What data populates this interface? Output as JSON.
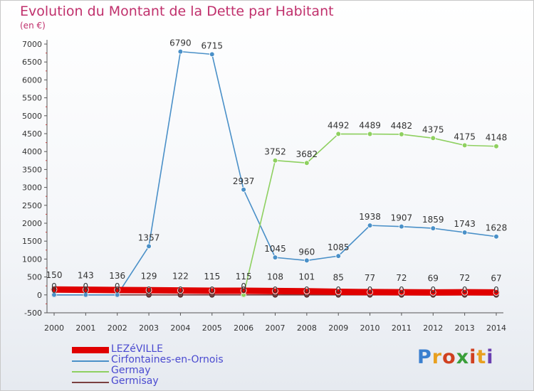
{
  "title": "Evolution du Montant de la Dette par Habitant",
  "subtitle": "(en €)",
  "brand": {
    "text": "Proxiti",
    "colors": [
      "#3a7fcf",
      "#e8a020",
      "#d04020",
      "#3a9f3a",
      "#d04020",
      "#e8a020",
      "#6a3fb0"
    ]
  },
  "chart_data": {
    "type": "line",
    "x": [
      "2000",
      "2001",
      "2002",
      "2003",
      "2004",
      "2005",
      "2006",
      "2007",
      "2008",
      "2009",
      "2010",
      "2011",
      "2012",
      "2013",
      "2014"
    ],
    "ylim": [
      -500,
      7000
    ],
    "yticks": [
      -500,
      0,
      500,
      1000,
      1500,
      2000,
      2500,
      3000,
      3500,
      4000,
      4500,
      5000,
      5500,
      6000,
      6500,
      7000
    ],
    "grid": false,
    "legend_position": "bottom-left",
    "series": [
      {
        "name": "LEZéVILLE",
        "color": "#e00000",
        "values": [
          150,
          143,
          136,
          129,
          122,
          115,
          115,
          108,
          101,
          85,
          77,
          72,
          69,
          72,
          67
        ],
        "labels": [
          "150",
          "143",
          "136",
          "129",
          "122",
          "115",
          "115",
          "108",
          "101",
          "85",
          "77",
          "72",
          "69",
          "72",
          "67"
        ]
      },
      {
        "name": "Cirfontaines-en-Ornois",
        "color": "#4a90c8",
        "values": [
          0,
          0,
          0,
          1357,
          6790,
          6715,
          2937,
          1045,
          960,
          1085,
          1938,
          1907,
          1859,
          1743,
          1628
        ],
        "labels": [
          "0",
          "0",
          "0",
          "1357",
          "6790",
          "6715",
          "2937",
          "1045",
          "960",
          "1085",
          "1938",
          "1907",
          "1859",
          "1743",
          "1628"
        ]
      },
      {
        "name": "Germay",
        "color": "#8ed060",
        "values": [
          null,
          null,
          null,
          null,
          null,
          null,
          0,
          3752,
          3682,
          4492,
          4489,
          4482,
          4375,
          4175,
          4148
        ],
        "labels": [
          "",
          "",
          "",
          "",
          "",
          "",
          "0",
          "3752",
          "3682",
          "4492",
          "4489",
          "4482",
          "4375",
          "4175",
          "4148"
        ]
      },
      {
        "name": "Germisay",
        "color": "#7a4040",
        "values": [
          0,
          0,
          0,
          0,
          0,
          0,
          0,
          0,
          0,
          0,
          0,
          0,
          0,
          0,
          0
        ],
        "labels": [
          "0",
          "0",
          "0",
          "0",
          "0",
          "0",
          "0",
          "0",
          "0",
          "0",
          "0",
          "0",
          "0",
          "0",
          "0"
        ]
      }
    ]
  }
}
